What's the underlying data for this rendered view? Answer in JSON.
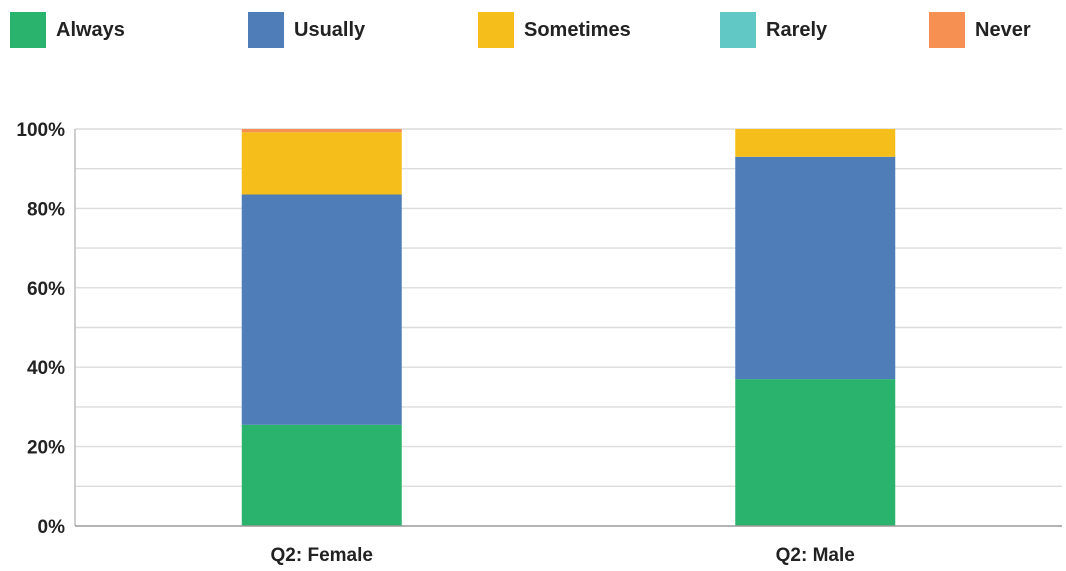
{
  "chart_data": {
    "type": "bar",
    "stacked": true,
    "categories": [
      "Q2: Female",
      "Q2: Male"
    ],
    "series": [
      {
        "name": "Always",
        "color": "#2ab36d",
        "values": [
          25.5,
          37
        ]
      },
      {
        "name": "Usually",
        "color": "#4e7db8",
        "values": [
          58,
          56
        ]
      },
      {
        "name": "Sometimes",
        "color": "#f6be1a",
        "values": [
          15.7,
          7
        ]
      },
      {
        "name": "Rarely",
        "color": "#62c8c6",
        "values": [
          0,
          0
        ]
      },
      {
        "name": "Never",
        "color": "#f58f52",
        "values": [
          0.8,
          0
        ]
      }
    ],
    "ylim": [
      0,
      100
    ],
    "yticks": [
      "0%",
      "20%",
      "40%",
      "60%",
      "80%",
      "100%"
    ],
    "ytick_values": [
      0,
      20,
      40,
      60,
      80,
      100
    ],
    "grid": true,
    "legend_position": "top",
    "xlabel": "",
    "ylabel": "",
    "title": ""
  }
}
